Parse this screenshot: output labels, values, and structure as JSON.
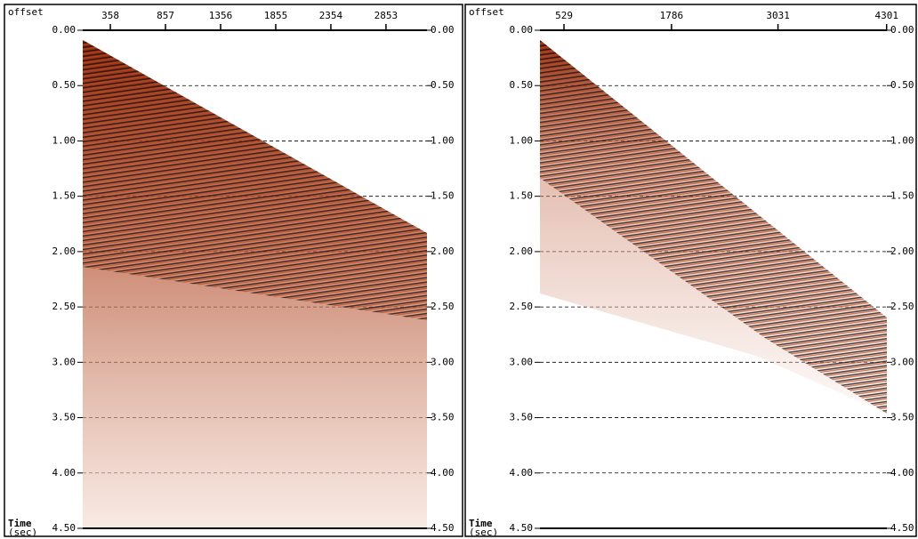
{
  "panels": [
    {
      "x_label": "offset",
      "y_label": "Time",
      "y_unit": "(sec)",
      "xlim": [
        108,
        3224
      ],
      "xticks": [
        358,
        857,
        1356,
        1855,
        2354,
        2853
      ],
      "ylim": [
        0,
        4.5
      ],
      "yticks": [
        {
          "value": 0,
          "label": "0.00"
        },
        {
          "value": 0.5,
          "label": "0.50"
        },
        {
          "value": 1,
          "label": "1.00"
        },
        {
          "value": 1.5,
          "label": "1.50"
        },
        {
          "value": 2,
          "label": "2.00"
        },
        {
          "value": 2.5,
          "label": "2.50"
        },
        {
          "value": 3,
          "label": "3.00"
        },
        {
          "value": 3.5,
          "label": "3.50"
        },
        {
          "value": 4,
          "label": "4.00"
        },
        {
          "value": 4.5,
          "label": "4.50"
        }
      ]
    },
    {
      "x_label": "offset",
      "y_label": "Time",
      "y_unit": "(sec)",
      "xlim": [
        248,
        4304
      ],
      "xticks": [
        529,
        1786,
        3031,
        4301
      ],
      "ylim": [
        0,
        4.5
      ],
      "yticks": [
        {
          "value": 0,
          "label": "0.00"
        },
        {
          "value": 0.5,
          "label": "0.50"
        },
        {
          "value": 1,
          "label": "1.00"
        },
        {
          "value": 1.5,
          "label": "1.50"
        },
        {
          "value": 2,
          "label": "2.00"
        },
        {
          "value": 2.5,
          "label": "2.50"
        },
        {
          "value": 3,
          "label": "3.00"
        },
        {
          "value": 3.5,
          "label": "3.50"
        },
        {
          "value": 4,
          "label": "4.00"
        },
        {
          "value": 4.5,
          "label": "4.50"
        }
      ]
    }
  ]
}
